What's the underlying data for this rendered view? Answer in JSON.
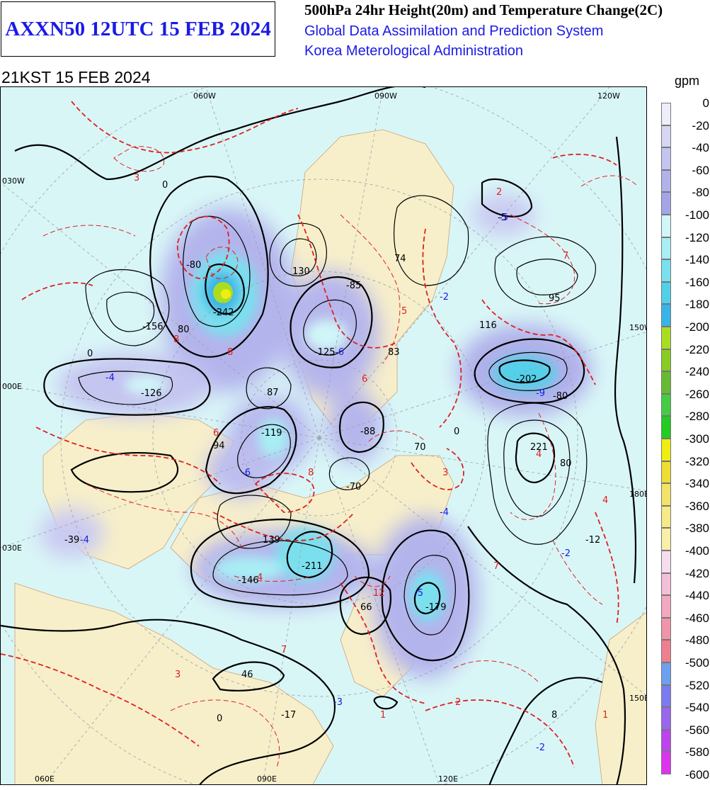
{
  "header": {
    "product_id": "AXXN50 12UTC 15 FEB 2024",
    "title": "500hPa 24hr Height(20m) and Temperature Change(2C)",
    "system": "Global Data Assimilation and Prediction System",
    "agency": "Korea Meterological Administration",
    "valid_time": "21KST 15 FEB 2024"
  },
  "legend": {
    "unit": "gpm",
    "levels": [
      "0",
      "-20",
      "-40",
      "-60",
      "-80",
      "-100",
      "-120",
      "-140",
      "-160",
      "-180",
      "-200",
      "-220",
      "-240",
      "-260",
      "-280",
      "-300",
      "-320",
      "-340",
      "-360",
      "-380",
      "-400",
      "-420",
      "-440",
      "-460",
      "-480",
      "-500",
      "-520",
      "-540",
      "-560",
      "-580",
      "-600"
    ],
    "colors": [
      "#eeeefb",
      "#d6d6f4",
      "#c4c4f0",
      "#b2b2ea",
      "#a4a4e6",
      "#d0f6f8",
      "#a8eef4",
      "#7ae0ee",
      "#52d0ea",
      "#38b4e6",
      "#aadd22",
      "#88cc22",
      "#66bb33",
      "#44cc44",
      "#22cc22",
      "#eeee11",
      "#eedd33",
      "#f4e366",
      "#f6ea88",
      "#f8efa8",
      "#f6ddee",
      "#f4bfd8",
      "#f2a8c0",
      "#f094a8",
      "#ee7f90",
      "#6e9ff0",
      "#7b7bef",
      "#9a66ee",
      "#bb44ee",
      "#dd33ee",
      "#ee22ee"
    ]
  },
  "map": {
    "labels": {
      "lon_top": [
        "060W",
        "090W",
        "120W"
      ],
      "lon_bottom": [
        "060E",
        "090E",
        "120E"
      ],
      "lat_left": [
        "030W",
        "000E",
        "030E"
      ],
      "lat_right": [
        "150W",
        "180E",
        "150E"
      ]
    },
    "height_centers": [
      {
        "value": "-242"
      },
      {
        "value": "-156"
      },
      {
        "value": "-126"
      },
      {
        "value": "130"
      },
      {
        "value": "-85"
      },
      {
        "value": "-125"
      },
      {
        "value": "74"
      },
      {
        "value": "83"
      },
      {
        "value": "95"
      },
      {
        "value": "116"
      },
      {
        "value": "-202"
      },
      {
        "value": "87"
      },
      {
        "value": "-119"
      },
      {
        "value": "94"
      },
      {
        "value": "-88"
      },
      {
        "value": "70"
      },
      {
        "value": "221"
      },
      {
        "value": "-70"
      },
      {
        "value": "139"
      },
      {
        "value": "-39"
      },
      {
        "value": "-146"
      },
      {
        "value": "-211"
      },
      {
        "value": "66"
      },
      {
        "value": "-179"
      },
      {
        "value": "-12"
      },
      {
        "value": "46"
      },
      {
        "value": "-17"
      },
      {
        "value": "-5"
      },
      {
        "value": "8"
      }
    ],
    "temp_centers": [
      {
        "value": "3"
      },
      {
        "value": "2"
      },
      {
        "value": "-5"
      },
      {
        "value": "7"
      },
      {
        "value": "-2"
      },
      {
        "value": "8"
      },
      {
        "value": "8"
      },
      {
        "value": "-6"
      },
      {
        "value": "-4"
      },
      {
        "value": "6"
      },
      {
        "value": "5"
      },
      {
        "value": "-9"
      },
      {
        "value": "6"
      },
      {
        "value": "-6"
      },
      {
        "value": "8"
      },
      {
        "value": "3"
      },
      {
        "value": "4"
      },
      {
        "value": "4"
      },
      {
        "value": "-4"
      },
      {
        "value": "4"
      },
      {
        "value": "-4"
      },
      {
        "value": "-2"
      },
      {
        "value": "12"
      },
      {
        "value": "-5"
      },
      {
        "value": "7"
      },
      {
        "value": "3"
      },
      {
        "value": "-3"
      },
      {
        "value": "2"
      },
      {
        "value": "1"
      },
      {
        "value": "-2"
      },
      {
        "value": "1"
      },
      {
        "value": "7"
      }
    ],
    "contour_labels": [
      "0",
      "-80",
      "80",
      "0",
      "80",
      "-80",
      "0",
      "0"
    ]
  }
}
